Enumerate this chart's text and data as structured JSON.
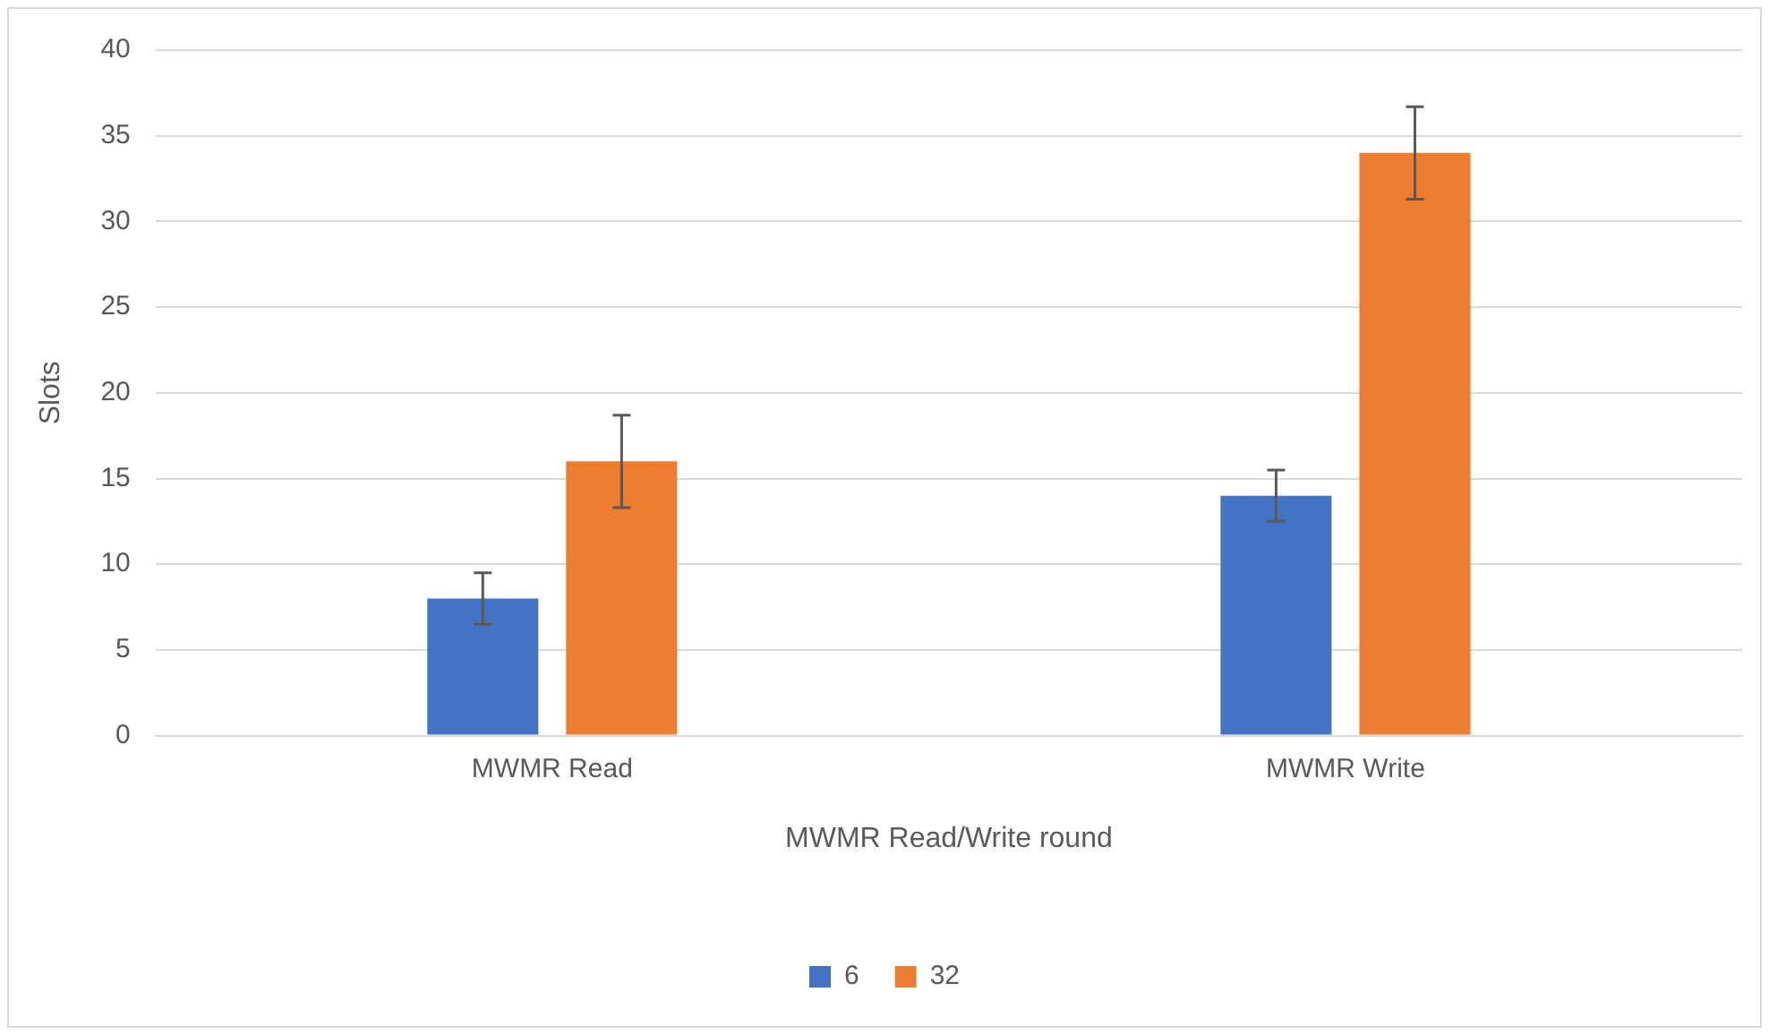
{
  "chart_data": {
    "type": "bar",
    "xlabel": "MWMR Read/Write round",
    "ylabel": "Slots",
    "categories": [
      "MWMR Read",
      "MWMR Write"
    ],
    "series": [
      {
        "name": "6",
        "color": "#4472c4",
        "values": [
          8,
          14
        ],
        "errors": [
          1.5,
          1.5
        ]
      },
      {
        "name": "32",
        "color": "#ed7d31",
        "values": [
          16,
          34
        ],
        "errors": [
          2.7,
          2.7
        ]
      }
    ],
    "ylim": [
      0,
      40
    ],
    "yticks": [
      0,
      5,
      10,
      15,
      20,
      25,
      30,
      35,
      40
    ],
    "grid": "y",
    "legend": "bottom"
  }
}
